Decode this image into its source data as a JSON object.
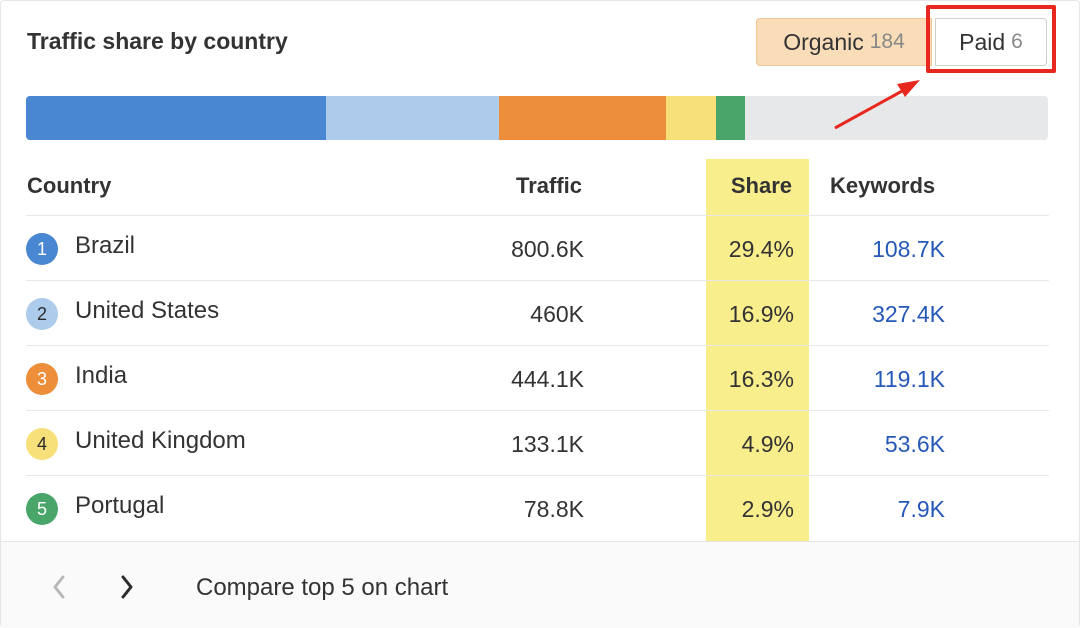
{
  "widget": {
    "title": "Traffic share by country"
  },
  "toggles": {
    "organic_label": "Organic",
    "organic_count": "184",
    "paid_label": "Paid",
    "paid_count": "6"
  },
  "share_bar": [
    {
      "share": 29.4,
      "color": "#4a87d2"
    },
    {
      "share": 16.9,
      "color": "#adcbeb"
    },
    {
      "share": 16.3,
      "color": "#ec8e3a"
    },
    {
      "share": 4.9,
      "color": "#f7e07a"
    },
    {
      "share": 2.9,
      "color": "#4aa56a"
    }
  ],
  "table": {
    "headers": {
      "country": "Country",
      "traffic": "Traffic",
      "share": "Share",
      "keywords": "Keywords"
    },
    "rows": [
      {
        "rank": "1",
        "country": "Brazil",
        "traffic": "800.6K",
        "share": "29.4%",
        "keywords": "108.7K",
        "color": "#4a87d2",
        "rank_text_color": "#ffffff"
      },
      {
        "rank": "2",
        "country": "United States",
        "traffic": "460K",
        "share": "16.9%",
        "keywords": "327.4K",
        "color": "#adcbeb",
        "rank_text_color": "#2b2b2b"
      },
      {
        "rank": "3",
        "country": "India",
        "traffic": "444.1K",
        "share": "16.3%",
        "keywords": "119.1K",
        "color": "#ec8e3a",
        "rank_text_color": "#ffffff"
      },
      {
        "rank": "4",
        "country": "United Kingdom",
        "traffic": "133.1K",
        "share": "4.9%",
        "keywords": "53.6K",
        "color": "#f7e07a",
        "rank_text_color": "#2b2b2b"
      },
      {
        "rank": "5",
        "country": "Portugal",
        "traffic": "78.8K",
        "share": "2.9%",
        "keywords": "7.9K",
        "color": "#4aa56a",
        "rank_text_color": "#ffffff"
      }
    ]
  },
  "footer": {
    "compare_label": "Compare top 5 on chart",
    "prev_icon": "chevron-left-icon",
    "next_icon": "chevron-right-icon"
  },
  "colors": {
    "share_column_highlight": "#f9ee8c",
    "keyword_link": "#2658b8",
    "annotation_red": "#e8281f"
  }
}
